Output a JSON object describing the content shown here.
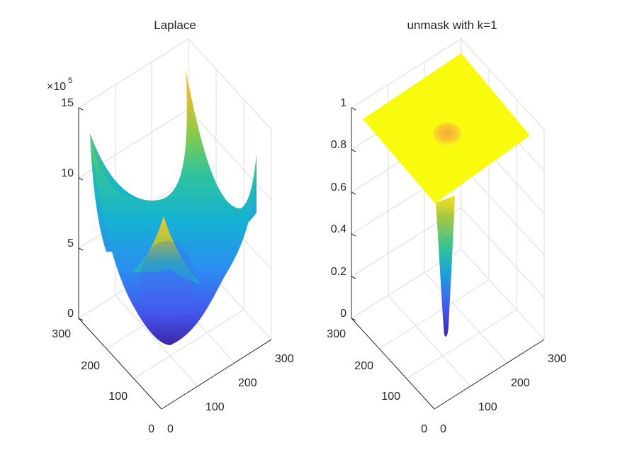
{
  "chart_data": [
    {
      "type": "surface",
      "title": "Laplace",
      "colormap": "parula",
      "xlabel": "",
      "ylabel": "",
      "zlabel": "",
      "xlim": [
        0,
        300
      ],
      "ylim": [
        0,
        300
      ],
      "zlim": [
        0,
        1500000
      ],
      "x_ticks": [
        "0",
        "100",
        "200",
        "300"
      ],
      "y_ticks": [
        "0",
        "100",
        "200",
        "300"
      ],
      "z_ticks": [
        "0",
        "5",
        "10",
        "15"
      ],
      "z_multiplier": "×10",
      "z_exponent": "5",
      "surface_description": "bowl-shaped surface, minimum ~0 at center, rising to ~12e5 at mid-edges and ~15e5 at corners"
    },
    {
      "type": "surface",
      "title": "unmask with k=1",
      "colormap": "parula",
      "xlabel": "",
      "ylabel": "",
      "zlabel": "",
      "xlim": [
        0,
        300
      ],
      "ylim": [
        0,
        300
      ],
      "zlim": [
        0,
        1
      ],
      "x_ticks": [
        "0",
        "100",
        "200",
        "300"
      ],
      "y_ticks": [
        "0",
        "100",
        "200",
        "300"
      ],
      "z_ticks": [
        "0",
        "0.2",
        "0.4",
        "0.6",
        "0.8",
        "1"
      ],
      "surface_description": "flat plane at 1 with a narrow well dropping to ~0 at the center"
    }
  ]
}
